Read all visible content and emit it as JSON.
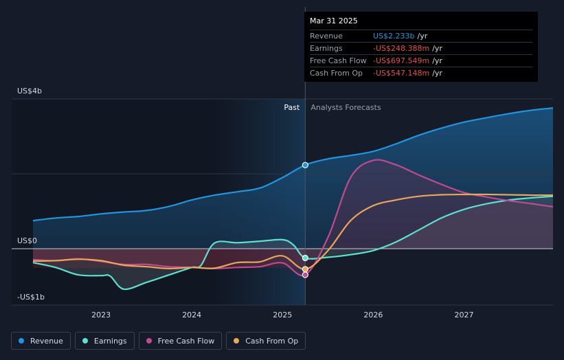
{
  "chart_data": {
    "type": "line",
    "y_axis_labels": {
      "top": "US$4b",
      "zero": "US$0",
      "bottom": "-US$1b"
    },
    "ylim": [
      -1.5,
      4.0
    ],
    "xlim": [
      2022.25,
      2027.98
    ],
    "x_tick_labels": [
      "2023",
      "2024",
      "2025",
      "2026",
      "2027"
    ],
    "x_ticks": [
      2023,
      2024,
      2025,
      2026,
      2027
    ],
    "past_label": "Past",
    "forecast_label": "Analysts Forecasts",
    "past_boundary": 2025.25,
    "shaded_region_start": 2024.25,
    "series": [
      {
        "name": "Revenue",
        "color": "#2394df",
        "points": [
          [
            2022.25,
            0.75
          ],
          [
            2022.5,
            0.82
          ],
          [
            2022.75,
            0.86
          ],
          [
            2023.0,
            0.93
          ],
          [
            2023.25,
            0.98
          ],
          [
            2023.5,
            1.02
          ],
          [
            2023.75,
            1.13
          ],
          [
            2024.0,
            1.3
          ],
          [
            2024.25,
            1.43
          ],
          [
            2024.5,
            1.52
          ],
          [
            2024.75,
            1.62
          ],
          [
            2025.0,
            1.9
          ],
          [
            2025.25,
            2.233
          ],
          [
            2025.5,
            2.4
          ],
          [
            2025.75,
            2.49
          ],
          [
            2026.0,
            2.6
          ],
          [
            2026.25,
            2.8
          ],
          [
            2026.5,
            3.03
          ],
          [
            2026.75,
            3.22
          ],
          [
            2027.0,
            3.38
          ],
          [
            2027.25,
            3.5
          ],
          [
            2027.5,
            3.61
          ],
          [
            2027.75,
            3.7
          ],
          [
            2027.98,
            3.76
          ]
        ]
      },
      {
        "name": "Earnings",
        "color": "#5ee0cf",
        "points": [
          [
            2022.25,
            -0.37
          ],
          [
            2022.5,
            -0.5
          ],
          [
            2022.75,
            -0.7
          ],
          [
            2023.0,
            -0.72
          ],
          [
            2023.1,
            -0.73
          ],
          [
            2023.25,
            -1.08
          ],
          [
            2023.5,
            -0.9
          ],
          [
            2023.75,
            -0.7
          ],
          [
            2024.0,
            -0.5
          ],
          [
            2024.1,
            -0.45
          ],
          [
            2024.25,
            0.15
          ],
          [
            2024.5,
            0.16
          ],
          [
            2024.75,
            0.2
          ],
          [
            2025.0,
            0.24
          ],
          [
            2025.12,
            0.1
          ],
          [
            2025.25,
            -0.248
          ],
          [
            2025.5,
            -0.23
          ],
          [
            2025.75,
            -0.16
          ],
          [
            2026.0,
            -0.05
          ],
          [
            2026.25,
            0.18
          ],
          [
            2026.5,
            0.5
          ],
          [
            2026.75,
            0.82
          ],
          [
            2027.0,
            1.05
          ],
          [
            2027.25,
            1.2
          ],
          [
            2027.5,
            1.3
          ],
          [
            2027.75,
            1.36
          ],
          [
            2027.98,
            1.4
          ]
        ]
      },
      {
        "name": "Free Cash Flow",
        "color": "#c14a8e",
        "points": [
          [
            2022.25,
            -0.29
          ],
          [
            2022.5,
            -0.32
          ],
          [
            2022.75,
            -0.27
          ],
          [
            2023.0,
            -0.34
          ],
          [
            2023.25,
            -0.42
          ],
          [
            2023.5,
            -0.42
          ],
          [
            2023.75,
            -0.48
          ],
          [
            2024.0,
            -0.5
          ],
          [
            2024.25,
            -0.53
          ],
          [
            2024.5,
            -0.5
          ],
          [
            2024.75,
            -0.48
          ],
          [
            2025.0,
            -0.38
          ],
          [
            2025.25,
            -0.698
          ],
          [
            2025.5,
            0.3
          ],
          [
            2025.75,
            1.9
          ],
          [
            2026.0,
            2.36
          ],
          [
            2026.25,
            2.24
          ],
          [
            2026.5,
            1.97
          ],
          [
            2026.75,
            1.72
          ],
          [
            2027.0,
            1.5
          ],
          [
            2027.25,
            1.38
          ],
          [
            2027.5,
            1.28
          ],
          [
            2027.75,
            1.2
          ],
          [
            2027.98,
            1.12
          ]
        ]
      },
      {
        "name": "Cash From Op",
        "color": "#e9a75b",
        "points": [
          [
            2022.25,
            -0.33
          ],
          [
            2022.5,
            -0.32
          ],
          [
            2022.75,
            -0.28
          ],
          [
            2023.0,
            -0.32
          ],
          [
            2023.25,
            -0.44
          ],
          [
            2023.5,
            -0.48
          ],
          [
            2023.75,
            -0.53
          ],
          [
            2024.0,
            -0.5
          ],
          [
            2024.25,
            -0.52
          ],
          [
            2024.5,
            -0.37
          ],
          [
            2024.75,
            -0.35
          ],
          [
            2025.0,
            -0.19
          ],
          [
            2025.25,
            -0.547
          ],
          [
            2025.5,
            -0.05
          ],
          [
            2025.75,
            0.75
          ],
          [
            2026.0,
            1.15
          ],
          [
            2026.25,
            1.3
          ],
          [
            2026.5,
            1.4
          ],
          [
            2026.75,
            1.44
          ],
          [
            2027.0,
            1.45
          ],
          [
            2027.25,
            1.45
          ],
          [
            2027.5,
            1.44
          ],
          [
            2027.75,
            1.43
          ],
          [
            2027.98,
            1.43
          ]
        ]
      }
    ],
    "markers": [
      {
        "series": 0,
        "x": 2025.25,
        "y": 2.233
      },
      {
        "series": 1,
        "x": 2025.25,
        "y": -0.248
      },
      {
        "series": 2,
        "x": 2025.25,
        "y": -0.698
      },
      {
        "series": 3,
        "x": 2025.25,
        "y": -0.547
      }
    ]
  },
  "tooltip": {
    "date": "Mar 31 2025",
    "rows": [
      {
        "label": "Revenue",
        "value": "US$2.233b",
        "unit": "/yr",
        "color": "#2394df"
      },
      {
        "label": "Earnings",
        "value": "-US$248.388m",
        "unit": "/yr",
        "color": "#e0524f"
      },
      {
        "label": "Free Cash Flow",
        "value": "-US$697.549m",
        "unit": "/yr",
        "color": "#e0524f"
      },
      {
        "label": "Cash From Op",
        "value": "-US$547.148m",
        "unit": "/yr",
        "color": "#e0524f"
      }
    ]
  },
  "legend": [
    {
      "label": "Revenue",
      "color": "#2394df"
    },
    {
      "label": "Earnings",
      "color": "#5ee0cf"
    },
    {
      "label": "Free Cash Flow",
      "color": "#c14a8e"
    },
    {
      "label": "Cash From Op",
      "color": "#e9a75b"
    }
  ]
}
